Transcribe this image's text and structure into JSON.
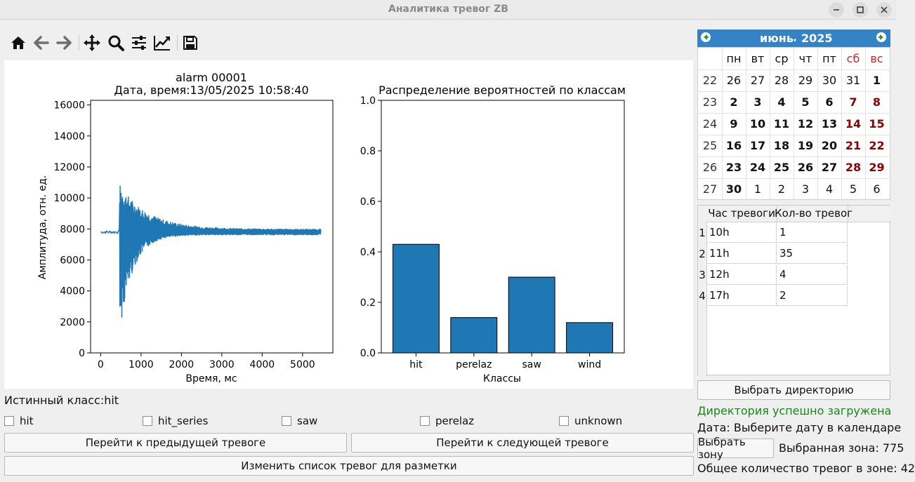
{
  "window": {
    "title": "Аналитика тревог ZB",
    "minimize_label": "–",
    "maximize_label": "☐",
    "close_label": "✕"
  },
  "toolbar": {
    "tools": [
      "home-icon",
      "back-arrow-icon",
      "forward-arrow-icon",
      "pan-icon",
      "zoom-icon",
      "configure-subplots-icon",
      "edit-axis-icon",
      "save-icon"
    ]
  },
  "signal_chart": {
    "title_line1": "alarm 00001",
    "title_line2": "Дата, время:13/05/2025 10:58:40",
    "xlabel": "Время, мс",
    "ylabel": "Амплитуда, отн. ед.",
    "xticks": [
      "0",
      "1000",
      "2000",
      "3000",
      "4000",
      "5000"
    ],
    "yticks": [
      "0",
      "2000",
      "4000",
      "6000",
      "8000",
      "10000",
      "12000",
      "14000",
      "16000"
    ],
    "color": "#1f77b4"
  },
  "chart_data": [
    {
      "type": "line",
      "title": "alarm 00001 Дата, время:13/05/2025 10:58:40",
      "xlabel": "Время, мс",
      "ylabel": "Амплитуда, отн. ед.",
      "xlim": [
        -250,
        5750
      ],
      "ylim": [
        0,
        16300
      ],
      "baseline": 7800,
      "onset_x": 470,
      "peak_max": 10800,
      "peak_min": 1500,
      "x_end": 5450,
      "grid": false
    },
    {
      "type": "bar",
      "title": "Распределение вероятностей по классам",
      "xlabel": "Классы",
      "ylabel": "",
      "categories": [
        "hit",
        "perelaz",
        "saw",
        "wind"
      ],
      "values": [
        0.43,
        0.14,
        0.3,
        0.12
      ],
      "ylim": [
        0,
        1.0
      ],
      "yticks": [
        "0.0",
        "0.2",
        "0.4",
        "0.6",
        "0.8",
        "1.0"
      ],
      "color": "#1f77b4",
      "grid": false
    }
  ],
  "true_class": "Истинный класс:hit",
  "checkboxes": [
    "hit",
    "hit_series",
    "saw",
    "perelaz",
    "unknown"
  ],
  "buttons": {
    "prev": "Перейти к предыдущей тревоге",
    "next": "Перейти к следующей тревоге",
    "edit_list": "Изменить список тревог для разметки",
    "choose_dir": "Выбрать директорию",
    "choose_zone": "Выбрать зону"
  },
  "calendar": {
    "month": "июнь",
    "year": "2025",
    "weekdays": [
      "пн",
      "вт",
      "ср",
      "чт",
      "пт",
      "сб",
      "вс"
    ],
    "weeks": [
      {
        "num": "22",
        "days": [
          "26",
          "27",
          "28",
          "29",
          "30",
          "31",
          "1"
        ]
      },
      {
        "num": "23",
        "days": [
          "2",
          "3",
          "4",
          "5",
          "6",
          "7",
          "8"
        ]
      },
      {
        "num": "24",
        "days": [
          "9",
          "10",
          "11",
          "12",
          "13",
          "14",
          "15"
        ]
      },
      {
        "num": "25",
        "days": [
          "16",
          "17",
          "18",
          "19",
          "20",
          "21",
          "22"
        ]
      },
      {
        "num": "26",
        "days": [
          "23",
          "24",
          "25",
          "26",
          "27",
          "28",
          "29"
        ]
      },
      {
        "num": "27",
        "days": [
          "30",
          "1",
          "2",
          "3",
          "4",
          "5",
          "6"
        ]
      }
    ],
    "weekend_color": "#d02020",
    "header_color": "#3483c7"
  },
  "alarm_table": {
    "headers": [
      "Час тревоги",
      "Кол-во тревог"
    ],
    "rows": [
      {
        "n": "1",
        "hour": "10h",
        "count": "1"
      },
      {
        "n": "2",
        "hour": "11h",
        "count": "35"
      },
      {
        "n": "3",
        "hour": "12h",
        "count": "4"
      },
      {
        "n": "4",
        "hour": "17h",
        "count": "2"
      }
    ]
  },
  "status": {
    "dir_loaded": "Директория успешно загружена",
    "dir_loaded_color": "#138a13",
    "date": "Дата: Выберите дату в календаре",
    "zone": "Выбранная зона: 775",
    "total": "Общее количество тревог в зоне: 42"
  }
}
